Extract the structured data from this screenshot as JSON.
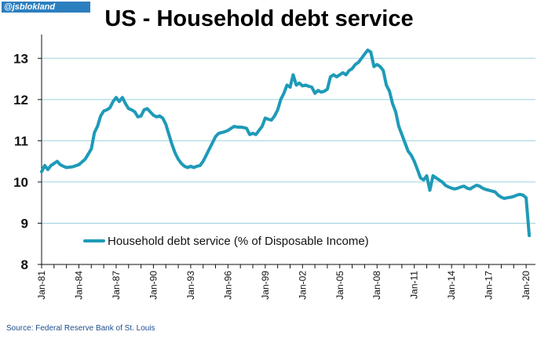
{
  "watermark": "@jsblokland",
  "source": "Source: Federal Reserve Bank of St. Louis",
  "colors": {
    "line": "#1e9ab8",
    "grid": "#9bd3df",
    "axis": "#111111"
  },
  "chart_data": {
    "type": "line",
    "title": "US - Household debt service",
    "xlabel": "",
    "ylabel": "",
    "ylim": [
      8,
      13.5
    ],
    "xlim": [
      1981.0,
      2020.75
    ],
    "yticks": [
      "8",
      "9",
      "10",
      "11",
      "12",
      "13"
    ],
    "xticks": [
      "Jan-81",
      "Jan-84",
      "Jan-87",
      "Jan-90",
      "Jan-93",
      "Jan-96",
      "Jan-99",
      "Jan-02",
      "Jan-05",
      "Jan-08",
      "Jan-11",
      "Jan-14",
      "Jan-17",
      "Jan-20"
    ],
    "grid": true,
    "legend": "lower-left",
    "series": [
      {
        "name": "Household debt service (% of Disposable Income)",
        "color": "#1e9ab8",
        "points": [
          [
            1981.0,
            10.25
          ],
          [
            1981.25,
            10.4
          ],
          [
            1981.5,
            10.3
          ],
          [
            1981.75,
            10.4
          ],
          [
            1982.0,
            10.45
          ],
          [
            1982.25,
            10.5
          ],
          [
            1982.5,
            10.42
          ],
          [
            1982.75,
            10.38
          ],
          [
            1983.0,
            10.35
          ],
          [
            1983.5,
            10.37
          ],
          [
            1984.0,
            10.42
          ],
          [
            1984.5,
            10.55
          ],
          [
            1985.0,
            10.8
          ],
          [
            1985.25,
            11.2
          ],
          [
            1985.5,
            11.35
          ],
          [
            1985.75,
            11.6
          ],
          [
            1986.0,
            11.72
          ],
          [
            1986.25,
            11.75
          ],
          [
            1986.5,
            11.8
          ],
          [
            1986.75,
            11.95
          ],
          [
            1987.0,
            12.05
          ],
          [
            1987.25,
            11.95
          ],
          [
            1987.5,
            12.05
          ],
          [
            1987.75,
            11.9
          ],
          [
            1988.0,
            11.78
          ],
          [
            1988.25,
            11.75
          ],
          [
            1988.5,
            11.7
          ],
          [
            1988.75,
            11.58
          ],
          [
            1989.0,
            11.6
          ],
          [
            1989.25,
            11.75
          ],
          [
            1989.5,
            11.78
          ],
          [
            1989.75,
            11.7
          ],
          [
            1990.0,
            11.62
          ],
          [
            1990.25,
            11.58
          ],
          [
            1990.5,
            11.6
          ],
          [
            1990.75,
            11.55
          ],
          [
            1991.0,
            11.4
          ],
          [
            1991.25,
            11.15
          ],
          [
            1991.5,
            10.9
          ],
          [
            1991.75,
            10.7
          ],
          [
            1992.0,
            10.55
          ],
          [
            1992.25,
            10.45
          ],
          [
            1992.5,
            10.38
          ],
          [
            1992.75,
            10.35
          ],
          [
            1993.0,
            10.38
          ],
          [
            1993.25,
            10.35
          ],
          [
            1993.5,
            10.38
          ],
          [
            1993.75,
            10.4
          ],
          [
            1994.0,
            10.5
          ],
          [
            1994.25,
            10.65
          ],
          [
            1994.5,
            10.8
          ],
          [
            1994.75,
            10.95
          ],
          [
            1995.0,
            11.1
          ],
          [
            1995.25,
            11.18
          ],
          [
            1995.5,
            11.2
          ],
          [
            1995.75,
            11.22
          ],
          [
            1996.0,
            11.25
          ],
          [
            1996.25,
            11.3
          ],
          [
            1996.5,
            11.35
          ],
          [
            1996.75,
            11.33
          ],
          [
            1997.0,
            11.33
          ],
          [
            1997.25,
            11.32
          ],
          [
            1997.5,
            11.3
          ],
          [
            1997.75,
            11.15
          ],
          [
            1998.0,
            11.18
          ],
          [
            1998.25,
            11.15
          ],
          [
            1998.5,
            11.25
          ],
          [
            1998.75,
            11.35
          ],
          [
            1999.0,
            11.55
          ],
          [
            1999.25,
            11.52
          ],
          [
            1999.5,
            11.5
          ],
          [
            1999.75,
            11.6
          ],
          [
            2000.0,
            11.75
          ],
          [
            2000.25,
            12.0
          ],
          [
            2000.5,
            12.15
          ],
          [
            2000.75,
            12.35
          ],
          [
            2001.0,
            12.3
          ],
          [
            2001.25,
            12.6
          ],
          [
            2001.5,
            12.35
          ],
          [
            2001.75,
            12.4
          ],
          [
            2002.0,
            12.33
          ],
          [
            2002.25,
            12.35
          ],
          [
            2002.5,
            12.32
          ],
          [
            2002.75,
            12.3
          ],
          [
            2003.0,
            12.15
          ],
          [
            2003.25,
            12.22
          ],
          [
            2003.5,
            12.18
          ],
          [
            2003.75,
            12.2
          ],
          [
            2004.0,
            12.25
          ],
          [
            2004.25,
            12.55
          ],
          [
            2004.5,
            12.6
          ],
          [
            2004.75,
            12.55
          ],
          [
            2005.0,
            12.6
          ],
          [
            2005.25,
            12.65
          ],
          [
            2005.5,
            12.6
          ],
          [
            2005.75,
            12.7
          ],
          [
            2006.0,
            12.75
          ],
          [
            2006.25,
            12.85
          ],
          [
            2006.5,
            12.9
          ],
          [
            2006.75,
            13.0
          ],
          [
            2007.0,
            13.1
          ],
          [
            2007.25,
            13.2
          ],
          [
            2007.5,
            13.15
          ],
          [
            2007.75,
            12.8
          ],
          [
            2008.0,
            12.85
          ],
          [
            2008.25,
            12.8
          ],
          [
            2008.5,
            12.7
          ],
          [
            2008.75,
            12.35
          ],
          [
            2009.0,
            12.2
          ],
          [
            2009.25,
            11.9
          ],
          [
            2009.5,
            11.7
          ],
          [
            2009.75,
            11.35
          ],
          [
            2010.0,
            11.15
          ],
          [
            2010.25,
            10.95
          ],
          [
            2010.5,
            10.75
          ],
          [
            2010.75,
            10.65
          ],
          [
            2011.0,
            10.5
          ],
          [
            2011.25,
            10.3
          ],
          [
            2011.5,
            10.1
          ],
          [
            2011.75,
            10.05
          ],
          [
            2012.0,
            10.15
          ],
          [
            2012.25,
            9.8
          ],
          [
            2012.5,
            10.15
          ],
          [
            2012.75,
            10.1
          ],
          [
            2013.0,
            10.05
          ],
          [
            2013.25,
            10.0
          ],
          [
            2013.5,
            9.92
          ],
          [
            2013.75,
            9.88
          ],
          [
            2014.0,
            9.85
          ],
          [
            2014.25,
            9.83
          ],
          [
            2014.5,
            9.85
          ],
          [
            2014.75,
            9.88
          ],
          [
            2015.0,
            9.9
          ],
          [
            2015.25,
            9.85
          ],
          [
            2015.5,
            9.83
          ],
          [
            2015.75,
            9.88
          ],
          [
            2016.0,
            9.92
          ],
          [
            2016.25,
            9.9
          ],
          [
            2016.5,
            9.85
          ],
          [
            2016.75,
            9.82
          ],
          [
            2017.0,
            9.8
          ],
          [
            2017.25,
            9.78
          ],
          [
            2017.5,
            9.76
          ],
          [
            2017.75,
            9.68
          ],
          [
            2018.0,
            9.63
          ],
          [
            2018.25,
            9.6
          ],
          [
            2018.5,
            9.62
          ],
          [
            2018.75,
            9.63
          ],
          [
            2019.0,
            9.65
          ],
          [
            2019.25,
            9.68
          ],
          [
            2019.5,
            9.7
          ],
          [
            2019.75,
            9.68
          ],
          [
            2020.0,
            9.62
          ],
          [
            2020.25,
            8.7
          ]
        ]
      }
    ]
  }
}
